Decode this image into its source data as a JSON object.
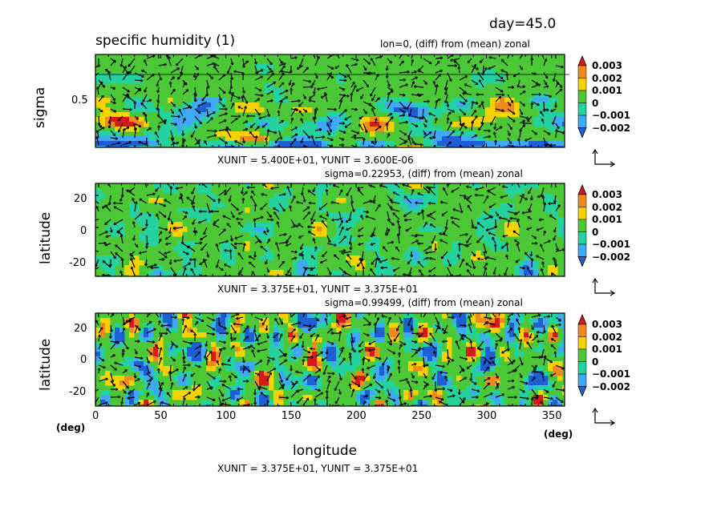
{
  "header": {
    "day_label": "day=45.0",
    "title": "specific humidity (1)"
  },
  "panels": [
    {
      "subtitle": "lon=0, (diff) from (mean) zonal",
      "ylabel": "sigma",
      "yticks": [
        "0.5"
      ],
      "unit_text": "XUNIT = 5.400E+01, YUNIT = 3.600E-06"
    },
    {
      "subtitle": "sigma=0.22953, (diff) from (mean) zonal",
      "ylabel": "latitude",
      "yticks": [
        "20",
        "0",
        "-20"
      ],
      "unit_text": "XUNIT = 3.375E+01, YUNIT = 3.375E+01"
    },
    {
      "subtitle": "sigma=0.99499, (diff) from (mean) zonal",
      "ylabel": "latitude",
      "yticks": [
        "20",
        "0",
        "-20"
      ],
      "unit_text": "XUNIT = 3.375E+01, YUNIT = 3.375E+01"
    }
  ],
  "xaxis": {
    "label": "longitude",
    "ticks": [
      "0",
      "50",
      "100",
      "150",
      "200",
      "250",
      "300",
      "350"
    ],
    "unit_left": "(deg)",
    "unit_right": "(deg)"
  },
  "colorbar": {
    "labels": [
      "0.003",
      "0.002",
      "0.001",
      "0",
      "−0.001",
      "−0.002"
    ],
    "colors": [
      "#d7191c",
      "#f08a1c",
      "#f5d200",
      "#4cc836",
      "#24d2a0",
      "#3fa9f5",
      "#1f5fd6"
    ]
  },
  "chart_data": [
    {
      "type": "heatmap",
      "title": "specific humidity (1)",
      "subtitle": "lon=0, (diff) from (mean) zonal",
      "xlabel": "",
      "ylabel": "sigma",
      "yticks": [
        0.5
      ],
      "levels": [
        -0.002,
        -0.001,
        0,
        0.001,
        0.002,
        0.003
      ],
      "vectors": "XUNIT = 5.400E+01, YUNIT = 3.600E-06"
    },
    {
      "type": "heatmap",
      "subtitle": "sigma=0.22953, (diff) from (mean) zonal",
      "xlabel": "",
      "ylabel": "latitude",
      "yticks": [
        20,
        0,
        -20
      ],
      "ylim": [
        -28,
        28
      ],
      "levels": [
        -0.002,
        -0.001,
        0,
        0.001,
        0.002,
        0.003
      ],
      "vectors": "XUNIT = 3.375E+01, YUNIT = 3.375E+01"
    },
    {
      "type": "heatmap",
      "subtitle": "sigma=0.99499, (diff) from (mean) zonal",
      "xlabel": "longitude",
      "ylabel": "latitude",
      "xlim": [
        0,
        360
      ],
      "xticks": [
        0,
        50,
        100,
        150,
        200,
        250,
        300,
        350
      ],
      "yticks": [
        20,
        0,
        -20
      ],
      "ylim": [
        -28,
        28
      ],
      "levels": [
        -0.002,
        -0.001,
        0,
        0.001,
        0.002,
        0.003
      ],
      "vectors": "XUNIT = 3.375E+01, YUNIT = 3.375E+01"
    }
  ]
}
